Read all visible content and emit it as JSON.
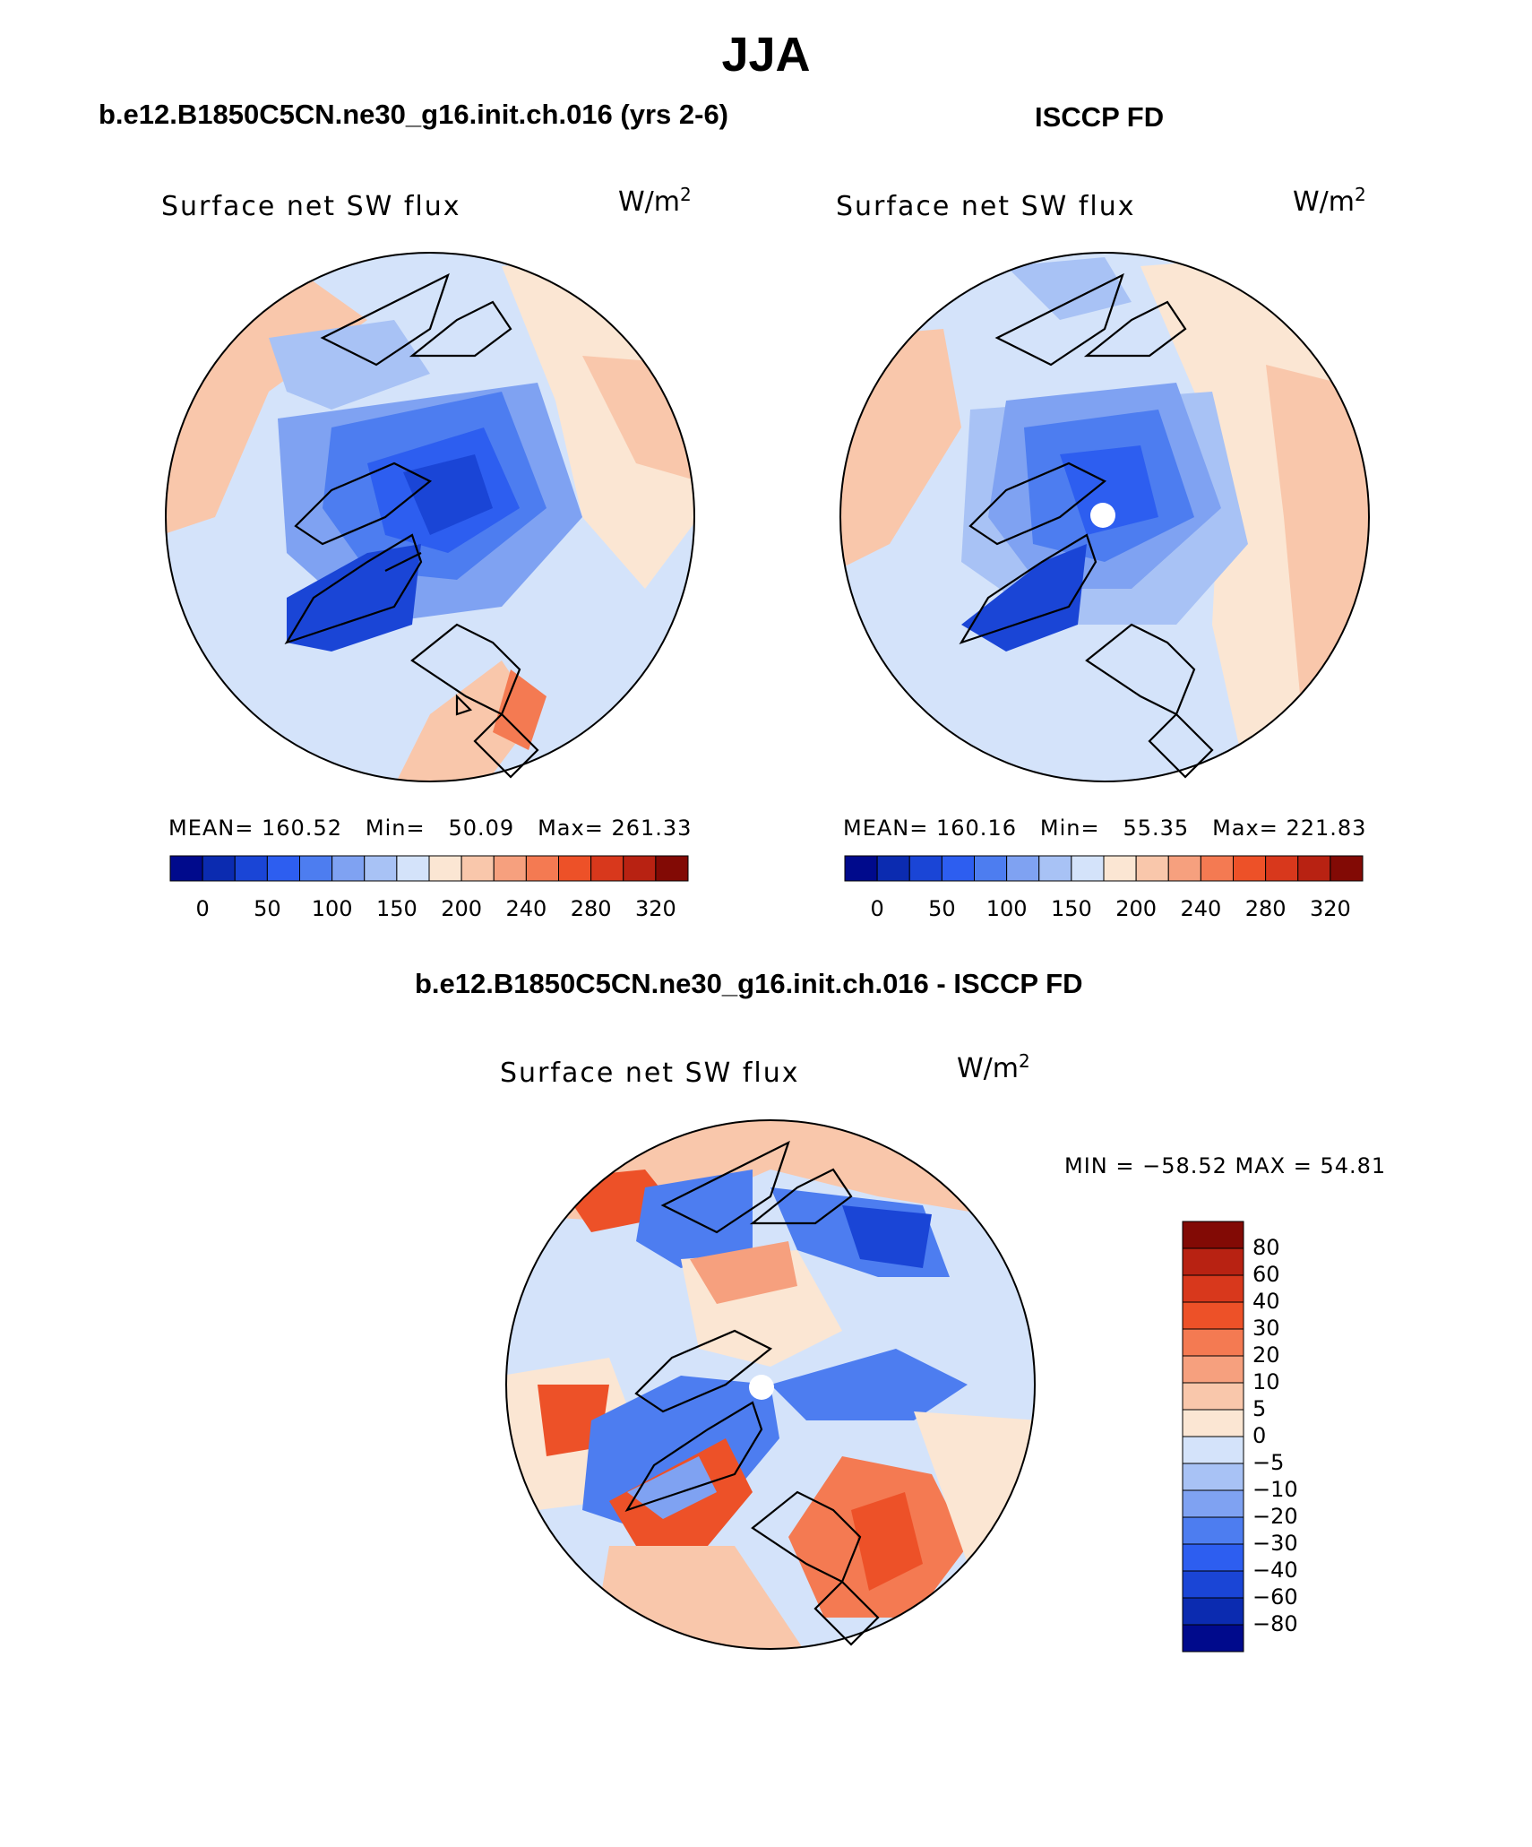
{
  "title": "JJA",
  "units": {
    "base": "W/m",
    "exp": "2"
  },
  "panels": {
    "model": {
      "case_title": "b.e12.B1850C5CN.ne30_g16.init.ch.016 (yrs 2-6)",
      "var_label": "Surface net SW flux",
      "mean_label": "MEAN=",
      "mean": "160.52",
      "min_label": "Min=",
      "min": "50.09",
      "max_label": "Max=",
      "max": "261.33"
    },
    "obs": {
      "case_title": "ISCCP FD",
      "var_label": "Surface net SW flux",
      "mean_label": "MEAN=",
      "mean": "160.16",
      "min_label": "Min=",
      "min": "55.35",
      "max_label": "Max=",
      "max": "221.83"
    },
    "diff": {
      "case_title": "b.e12.B1850C5CN.ne30_g16.init.ch.016 - ISCCP FD",
      "var_label": "Surface net SW flux",
      "minmax_text": "MIN = −58.52 MAX =   54.81"
    }
  },
  "colorbar_abs": {
    "colors": [
      "#000a8c",
      "#0b2bb0",
      "#1a45d6",
      "#2d5ef0",
      "#4d7df0",
      "#7fa2f2",
      "#a8c2f5",
      "#d4e3fa",
      "#fbe6d3",
      "#f9c7ab",
      "#f6a07e",
      "#f47a52",
      "#ed5128",
      "#d8381c",
      "#b82212",
      "#820a05"
    ],
    "tick_labels": [
      "0",
      "50",
      "100",
      "150",
      "200",
      "240",
      "280",
      "320"
    ]
  },
  "colorbar_diff": {
    "colors": [
      "#000a8c",
      "#0b2bb0",
      "#1a45d6",
      "#2d5ef0",
      "#4d7df0",
      "#7fa2f2",
      "#a8c2f5",
      "#d4e3fa",
      "#fbe6d3",
      "#f9c7ab",
      "#f6a07e",
      "#f47a52",
      "#ed5128",
      "#d8381c",
      "#b82212",
      "#820a05"
    ],
    "labels": [
      "80",
      "60",
      "40",
      "30",
      "20",
      "10",
      "5",
      "0",
      "−5",
      "−10",
      "−20",
      "−30",
      "−40",
      "−60",
      "−80"
    ]
  }
}
